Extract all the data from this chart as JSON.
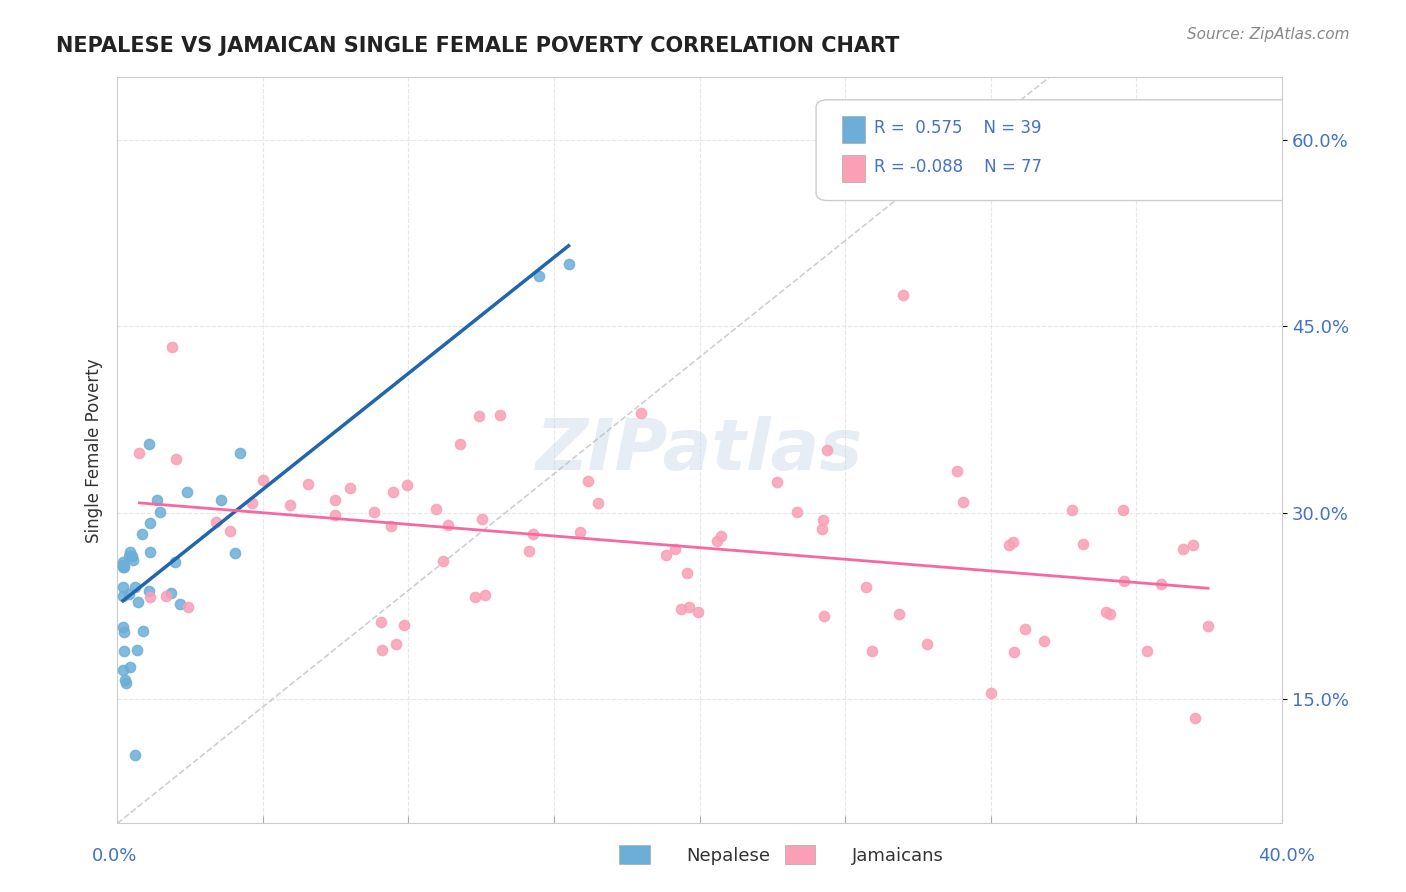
{
  "title": "NEPALESE VS JAMAICAN SINGLE FEMALE POVERTY CORRELATION CHART",
  "source_text": "Source: ZipAtlas.com",
  "ylabel": "Single Female Poverty",
  "yticks": [
    "15.0%",
    "30.0%",
    "45.0%",
    "60.0%"
  ],
  "ytick_vals": [
    0.15,
    0.3,
    0.45,
    0.6
  ],
  "xlim": [
    0.0,
    0.4
  ],
  "ylim": [
    0.05,
    0.65
  ],
  "watermark": "ZIPatlas",
  "nepalese_color": "#6baed6",
  "jamaican_color": "#fa9fb5",
  "nepalese_line_color": "#2166ac",
  "jamaican_line_color": "#f768a1",
  "trendline_dashed_color": "#bbbbbb"
}
